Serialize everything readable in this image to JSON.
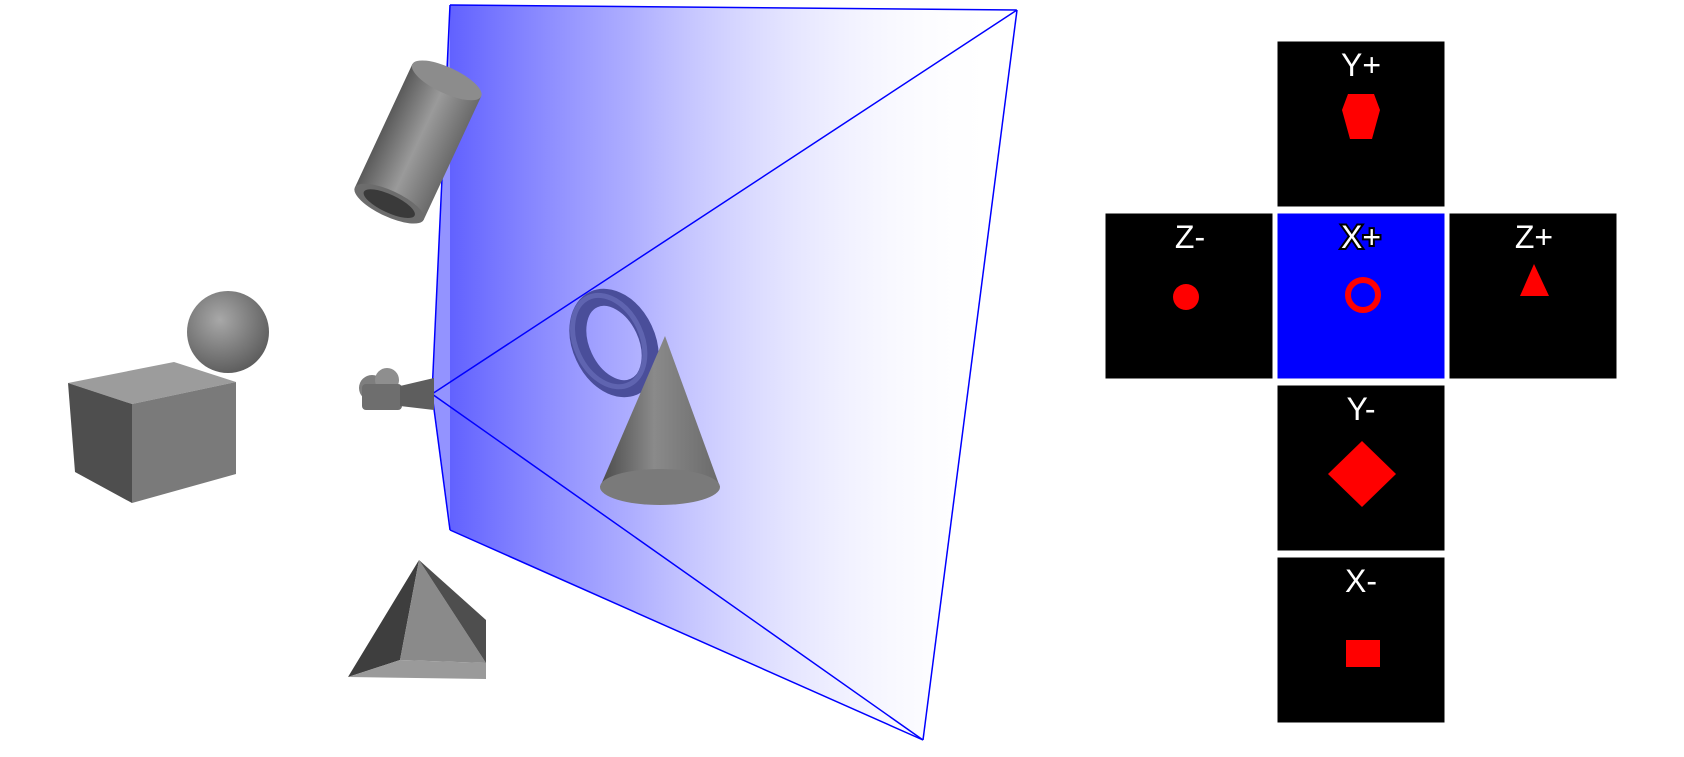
{
  "colors": {
    "frustum_edge": "#0000ff",
    "frustum_fill": "#3a3aff",
    "active_face": "#0000ff",
    "face_background": "#000000",
    "face_border": "#ffffff",
    "silhouette": "#ff0000",
    "object_gray": "#8a8a8a"
  },
  "scene_objects": [
    "cube-icon",
    "sphere-icon",
    "cylinder-icon",
    "camera-icon",
    "pyramid-icon",
    "torus-icon",
    "cone-icon"
  ],
  "cube_map": {
    "faces": [
      {
        "id": "y-plus",
        "label": "Y+",
        "silhouette": "cylinder-end",
        "active": false
      },
      {
        "id": "z-minus",
        "label": "Z-",
        "silhouette": "sphere-dot",
        "active": false
      },
      {
        "id": "x-plus",
        "label": "X+",
        "silhouette": "torus-ring",
        "active": true
      },
      {
        "id": "z-plus",
        "label": "Z+",
        "silhouette": "pyramid-triangle",
        "active": false
      },
      {
        "id": "y-minus",
        "label": "Y-",
        "silhouette": "cone-diamond",
        "active": false
      },
      {
        "id": "x-minus",
        "label": "X-",
        "silhouette": "cube-square",
        "active": false
      }
    ]
  }
}
